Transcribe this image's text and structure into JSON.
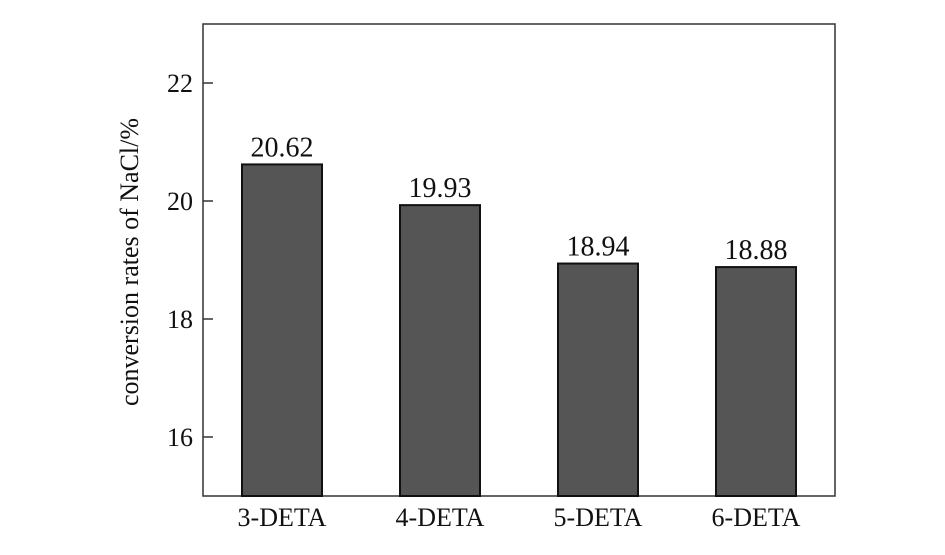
{
  "chart_data": {
    "type": "bar",
    "title": "",
    "xlabel": "",
    "ylabel": "conversion rates of NaCl/%",
    "categories": [
      "3-DETA",
      "4-DETA",
      "5-DETA",
      "6-DETA"
    ],
    "values": [
      20.62,
      19.93,
      18.94,
      18.88
    ],
    "data_labels": [
      "20.62",
      "19.93",
      "18.94",
      "18.88"
    ],
    "ylim": [
      15,
      23
    ],
    "yticks": [
      16,
      18,
      20,
      22
    ],
    "grid": false,
    "legend": "none",
    "colors": {
      "bar": "#555555",
      "bar_edge": "#111111",
      "axis": "#333333"
    }
  }
}
